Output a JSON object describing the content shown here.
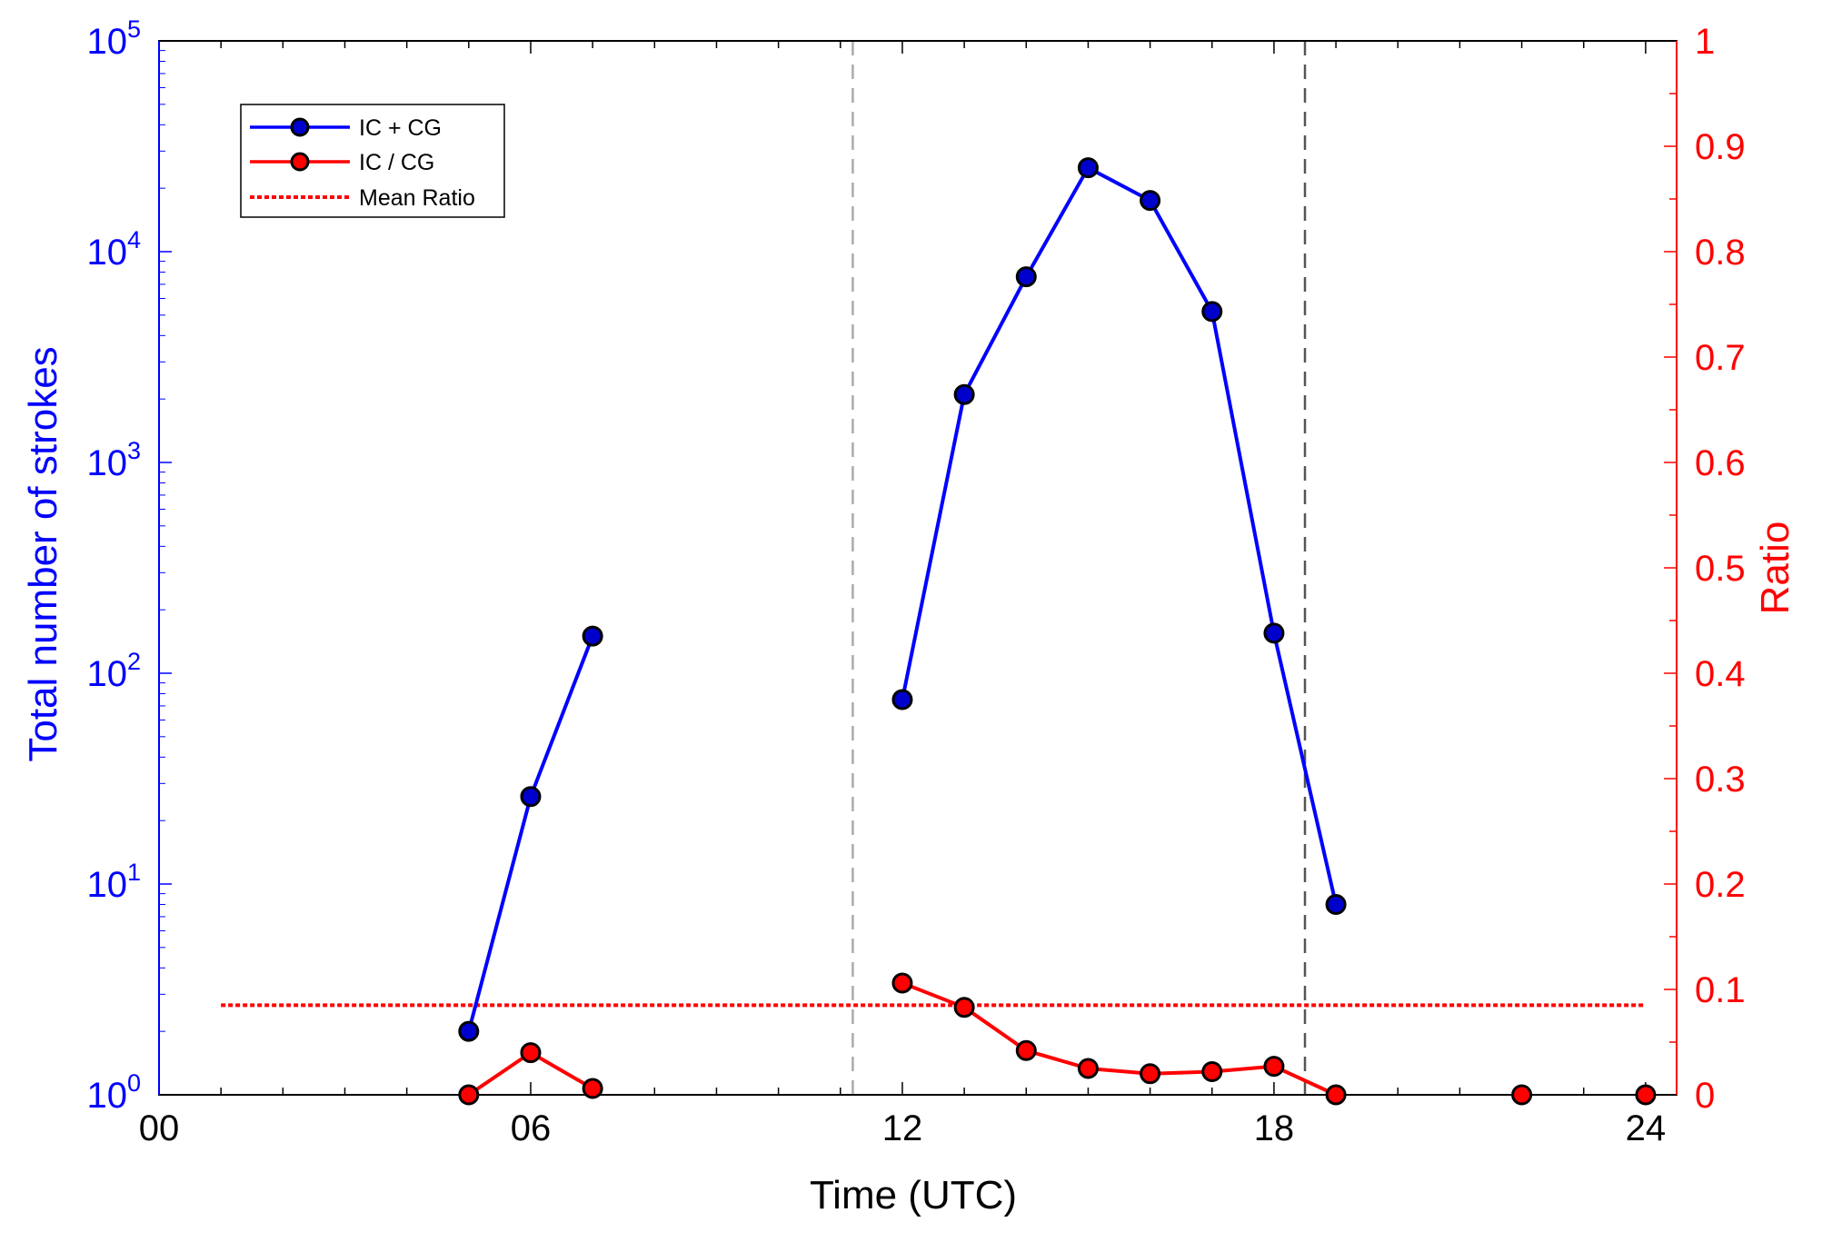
{
  "chart_data": {
    "type": "line",
    "title": "",
    "xlabel": "Time (UTC)",
    "ylabel_left": "Total number of strokes",
    "ylabel_right": "Ratio",
    "xlim": [
      0,
      24.5
    ],
    "ylim_left": [
      1,
      100000
    ],
    "yscale_left": "log",
    "ylim_right": [
      0,
      1
    ],
    "x_ticks": [
      "00",
      "06",
      "12",
      "18",
      "24"
    ],
    "y_ticks_left": [
      {
        "base": "10",
        "exp": "0"
      },
      {
        "base": "10",
        "exp": "1"
      },
      {
        "base": "10",
        "exp": "2"
      },
      {
        "base": "10",
        "exp": "3"
      },
      {
        "base": "10",
        "exp": "4"
      },
      {
        "base": "10",
        "exp": "5"
      }
    ],
    "y_ticks_right": [
      "0",
      "0.1",
      "0.2",
      "0.3",
      "0.4",
      "0.5",
      "0.6",
      "0.7",
      "0.8",
      "0.9",
      "1"
    ],
    "vertical_lines": [
      {
        "x": 11.2,
        "style": "dashed",
        "color": "#aaaaaa"
      },
      {
        "x": 18.5,
        "style": "dashed",
        "color": "#555555"
      }
    ],
    "series": [
      {
        "name": "IC + CG",
        "axis": "left",
        "color": "#0000ff",
        "marker_color": "#0000cc",
        "segments": [
          [
            [
              5,
              2
            ],
            [
              6,
              26
            ],
            [
              7,
              150
            ]
          ],
          [
            [
              12,
              75
            ],
            [
              13,
              2100
            ],
            [
              14,
              7600
            ],
            [
              15,
              25000
            ],
            [
              16,
              17500
            ],
            [
              17,
              5200
            ],
            [
              18,
              155
            ],
            [
              19,
              8
            ]
          ]
        ]
      },
      {
        "name": "IC / CG",
        "axis": "right",
        "color": "#ff0000",
        "marker_color": "#ff0000",
        "segments": [
          [
            [
              5,
              0.0
            ],
            [
              6,
              0.04
            ],
            [
              7,
              0.006
            ]
          ],
          [
            [
              12,
              0.106
            ],
            [
              13,
              0.083
            ],
            [
              14,
              0.042
            ],
            [
              15,
              0.025
            ],
            [
              16,
              0.02
            ],
            [
              17,
              0.022
            ],
            [
              18,
              0.027
            ],
            [
              19,
              0.0
            ]
          ],
          [
            [
              22,
              0.0
            ]
          ],
          [
            [
              24,
              0.0
            ]
          ]
        ]
      }
    ],
    "mean_ratio": {
      "name": "Mean Ratio",
      "axis": "right",
      "value": 0.085,
      "x_range": [
        1,
        24
      ],
      "color": "#ff0000",
      "style": "dotted"
    },
    "legend": {
      "position": "top-left",
      "entries": [
        "IC + CG",
        "IC / CG",
        "Mean Ratio"
      ]
    },
    "colors": {
      "left_axis": "#0000ff",
      "right_axis": "#ff0000",
      "marker_edge": "#000000"
    }
  }
}
